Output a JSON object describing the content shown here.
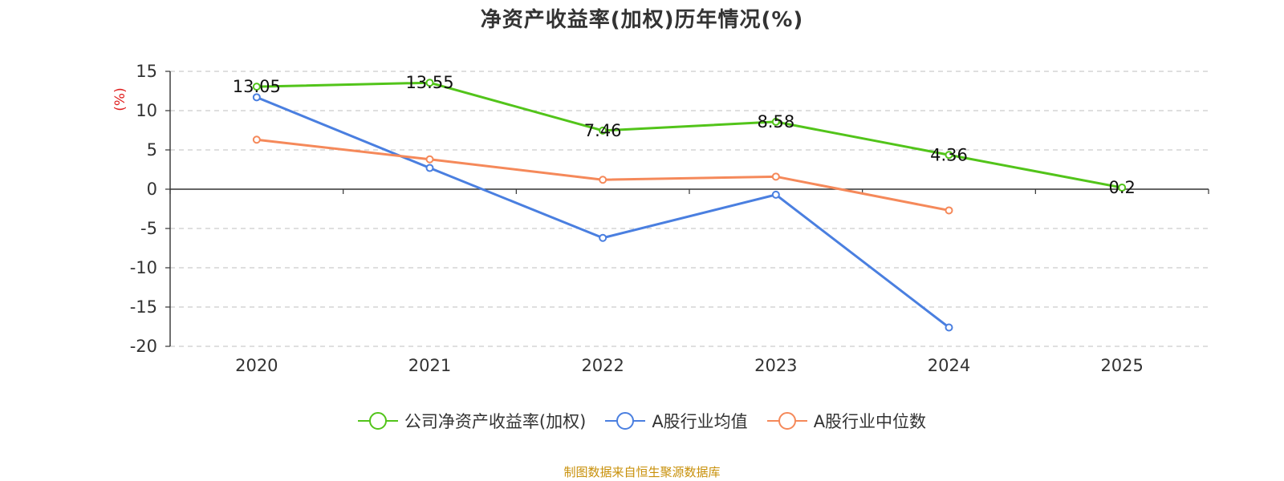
{
  "chart_data": {
    "type": "line",
    "title": "净资产收益率(加权)历年情况(%)",
    "ylabel": "(%)",
    "xlabel": "",
    "categories": [
      "2020",
      "2021",
      "2022",
      "2023",
      "2024",
      "2025"
    ],
    "ylim": [
      -20,
      15
    ],
    "yticks": [
      15,
      10,
      5,
      0,
      -5,
      -10,
      -15,
      -20
    ],
    "grid": true,
    "legend_position": "bottom",
    "series": [
      {
        "name": "公司净资产收益率(加权)",
        "color": "#52c41a",
        "values": [
          13.05,
          13.55,
          7.46,
          8.58,
          4.36,
          0.2
        ],
        "labels": [
          "13.05",
          "13.55",
          "7.46",
          "8.58",
          "4.36",
          "0.2"
        ]
      },
      {
        "name": "A股行业均值",
        "color": "#4a7fe0",
        "values": [
          11.7,
          2.7,
          -6.2,
          -0.7,
          -17.6,
          null
        ]
      },
      {
        "name": "A股行业中位数",
        "color": "#f5895a",
        "values": [
          6.3,
          3.8,
          1.2,
          1.6,
          -2.7,
          null
        ]
      }
    ]
  },
  "source_text": "制图数据来自恒生聚源数据库",
  "colors": {
    "source": "#c8900a",
    "ylabel": "#e02020",
    "axis": "#333333",
    "grid": "#cccccc"
  }
}
